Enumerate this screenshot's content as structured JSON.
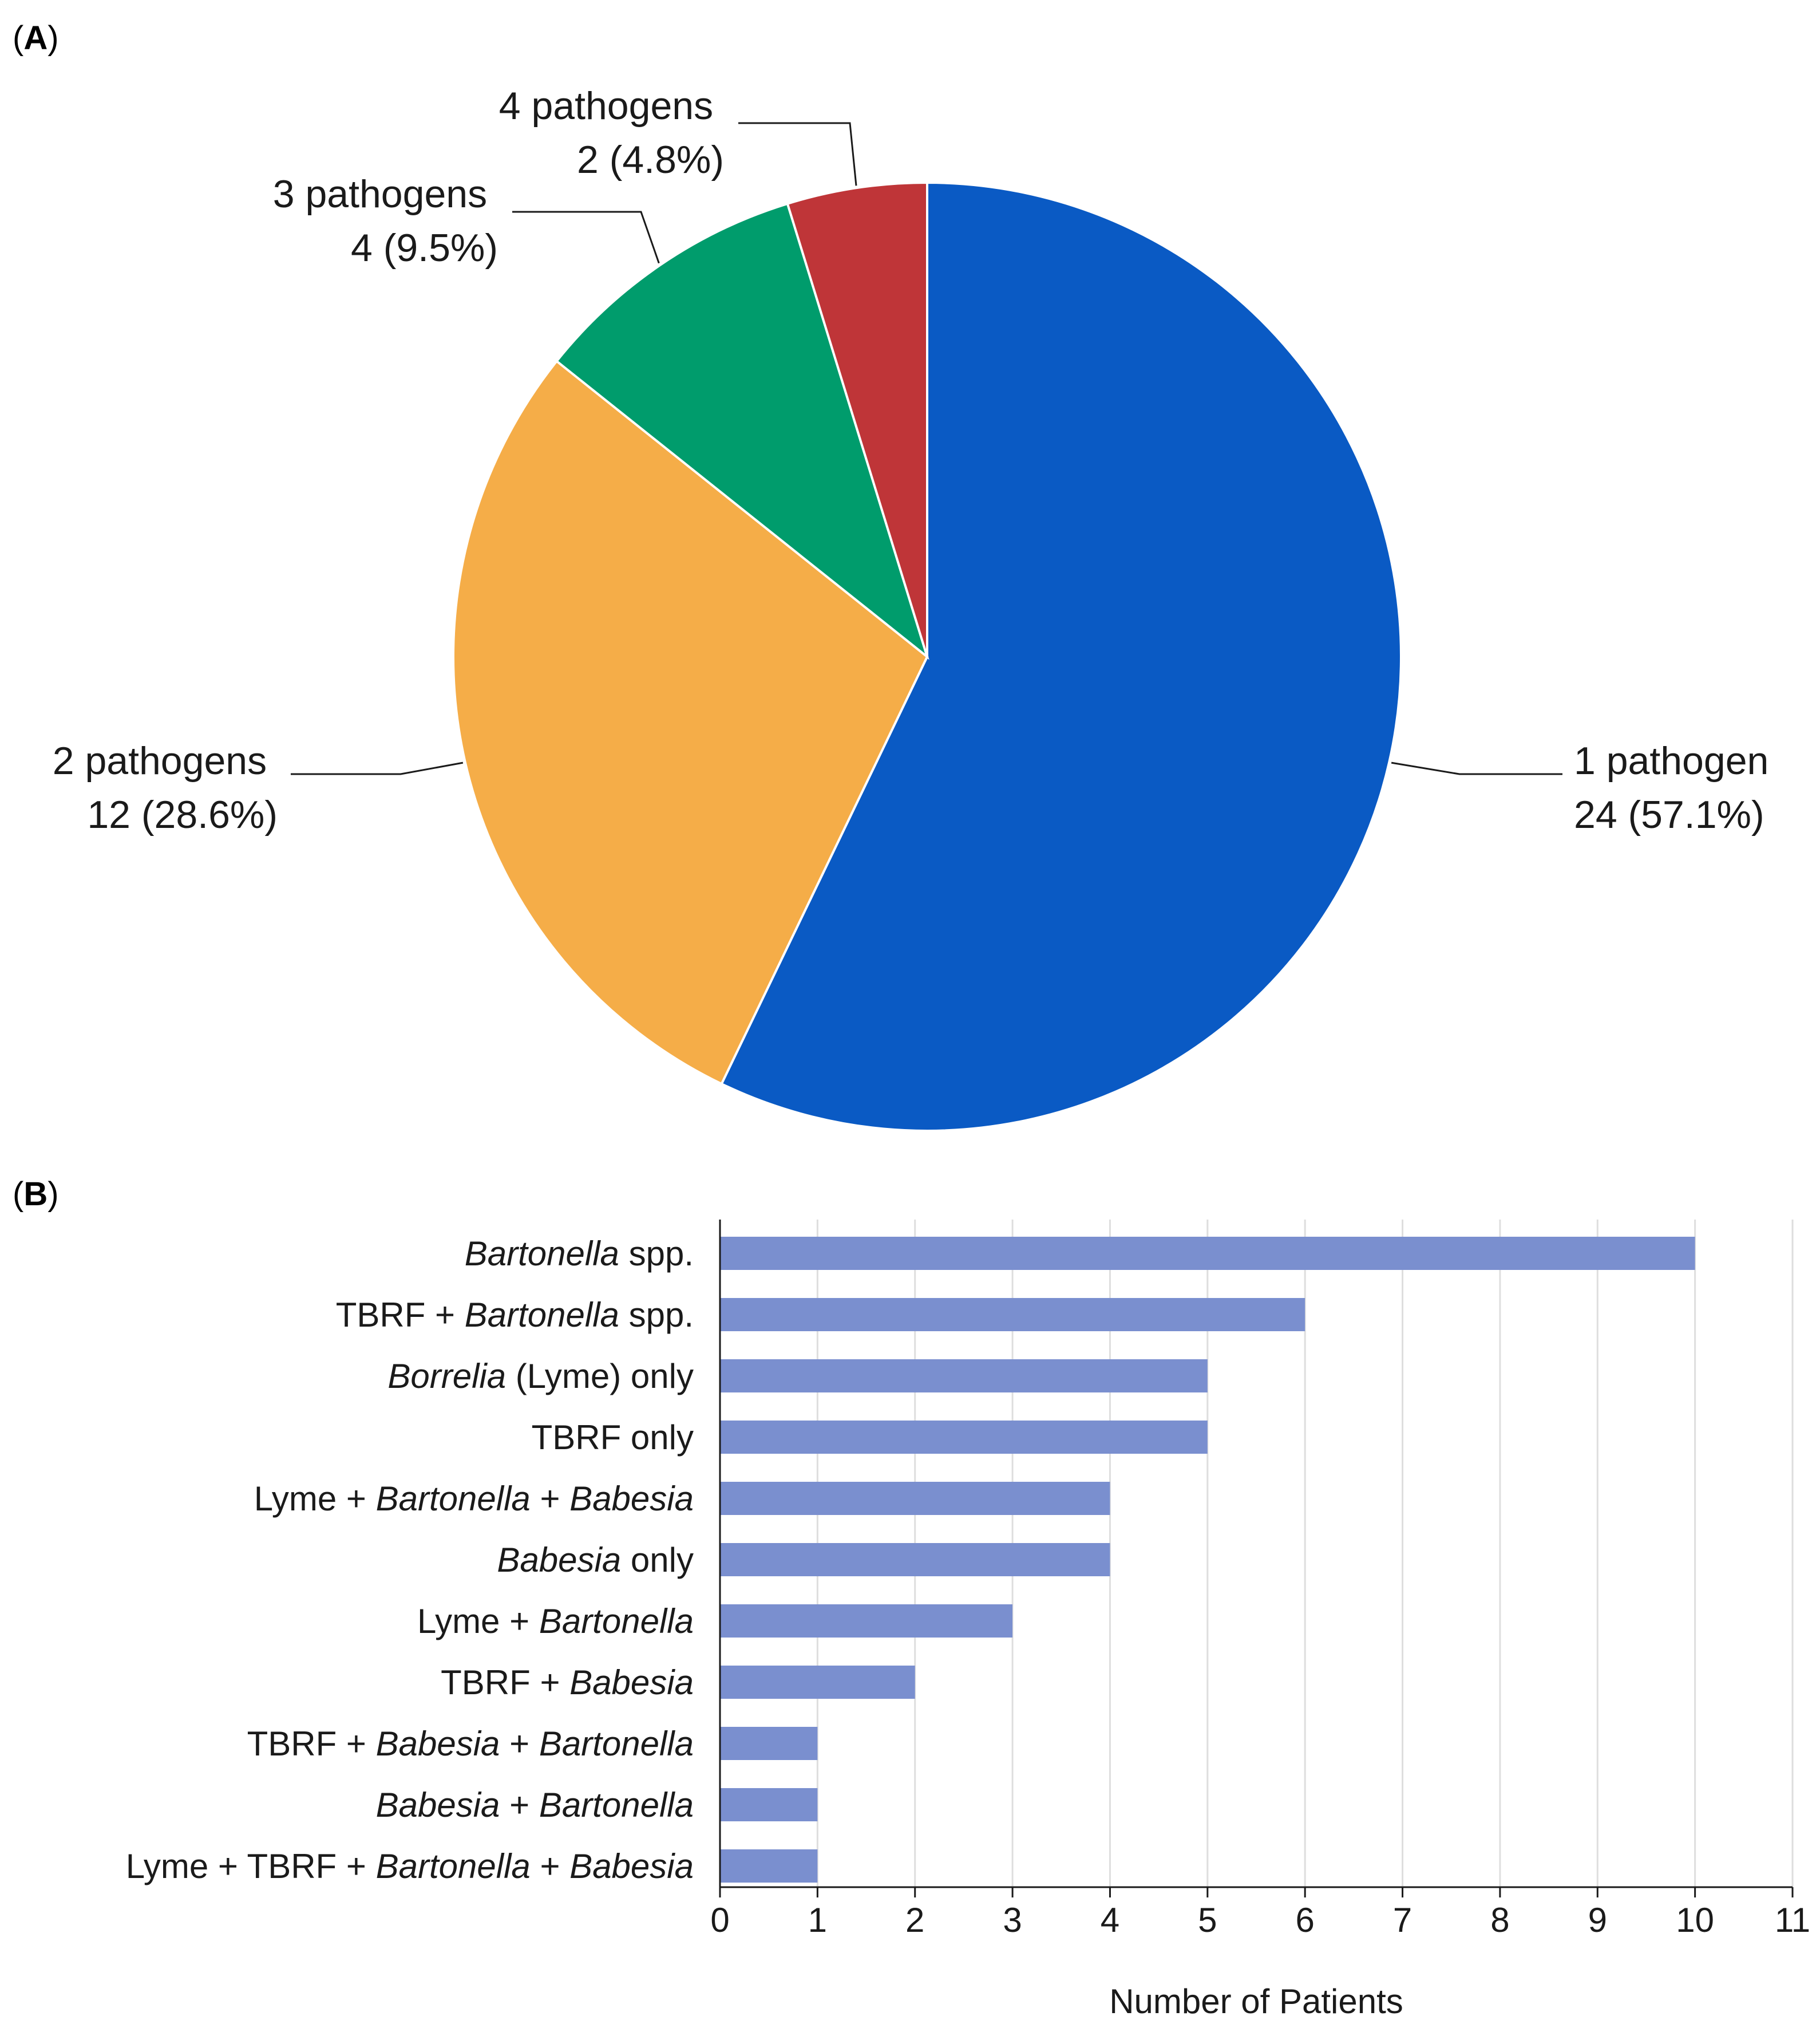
{
  "chart_data": [
    {
      "panel": "(A)",
      "panel_letter": "A",
      "type": "pie",
      "slices": [
        {
          "name": "1 pathogen",
          "value_text": "24 (57.1%)",
          "value": 24,
          "percent": 57.1,
          "color": "#0a5ac4"
        },
        {
          "name": "2 pathogens",
          "value_text": "12 (28.6%)",
          "value": 12,
          "percent": 28.6,
          "color": "#f5ad48"
        },
        {
          "name": "3 pathogens",
          "value_text": "4 (9.5%)",
          "value": 4,
          "percent": 9.5,
          "color": "#009c6c"
        },
        {
          "name": "4 pathogens",
          "value_text": "2 (4.8%)",
          "value": 2,
          "percent": 4.8,
          "color": "#bf3538"
        }
      ],
      "start_angle": "12 o'clock",
      "direction": "clockwise"
    },
    {
      "panel": "(B)",
      "panel_letter": "B",
      "type": "bar",
      "orientation": "horizontal",
      "bar_color": "#7a8fcf",
      "categories": [
        [
          {
            "t": "Bartonella",
            "i": true
          },
          {
            "t": " spp.",
            "i": false
          }
        ],
        [
          {
            "t": "TBRF + ",
            "i": false
          },
          {
            "t": "Bartonella",
            "i": true
          },
          {
            "t": " spp.",
            "i": false
          }
        ],
        [
          {
            "t": "Borrelia",
            "i": true
          },
          {
            "t": " (Lyme) only",
            "i": false
          }
        ],
        [
          {
            "t": "TBRF only",
            "i": false
          }
        ],
        [
          {
            "t": "Lyme + ",
            "i": false
          },
          {
            "t": "Bartonella",
            "i": true
          },
          {
            "t": " + ",
            "i": false
          },
          {
            "t": "Babesia",
            "i": true
          }
        ],
        [
          {
            "t": "Babesia",
            "i": true
          },
          {
            "t": " only",
            "i": false
          }
        ],
        [
          {
            "t": "Lyme + ",
            "i": false
          },
          {
            "t": "Bartonella",
            "i": true
          }
        ],
        [
          {
            "t": "TBRF + ",
            "i": false
          },
          {
            "t": "Babesia",
            "i": true
          }
        ],
        [
          {
            "t": "TBRF + ",
            "i": false
          },
          {
            "t": "Babesia",
            "i": true
          },
          {
            "t": " + ",
            "i": false
          },
          {
            "t": "Bartonella",
            "i": true
          }
        ],
        [
          {
            "t": "Babesia",
            "i": true
          },
          {
            "t": " + ",
            "i": false
          },
          {
            "t": "Bartonella",
            "i": true
          }
        ],
        [
          {
            "t": "Lyme + TBRF + ",
            "i": false
          },
          {
            "t": "Bartonella",
            "i": true
          },
          {
            "t": " + ",
            "i": false
          },
          {
            "t": "Babesia",
            "i": true
          }
        ]
      ],
      "values": [
        10,
        6,
        5,
        5,
        4,
        4,
        3,
        2,
        1,
        1,
        1
      ],
      "xlabel": "Number of Patients",
      "xlim": [
        0,
        11
      ],
      "xticks": [
        0,
        1,
        2,
        3,
        4,
        5,
        6,
        7,
        8,
        9,
        10,
        11
      ],
      "grid": "vertical"
    }
  ]
}
